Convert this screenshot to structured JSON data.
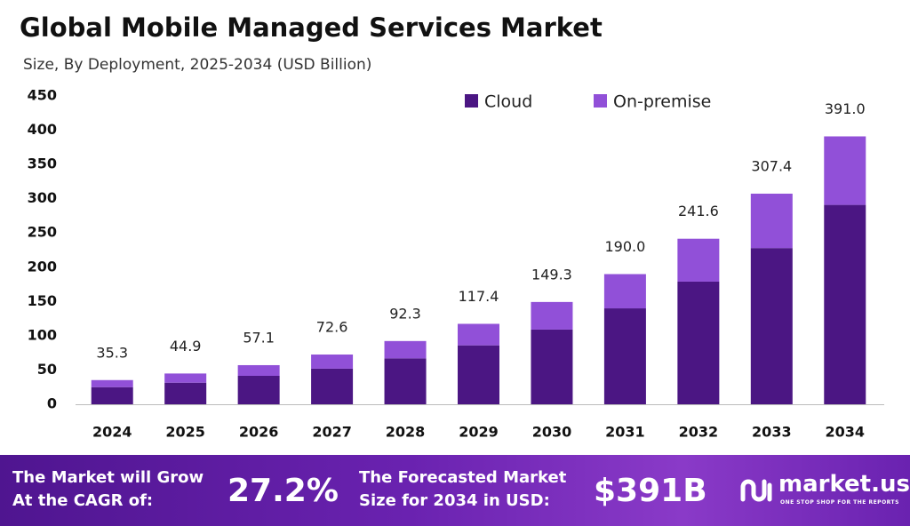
{
  "chart_data": {
    "type": "stacked-bar",
    "title": "Global Mobile Managed Services Market",
    "subtitle": "Size, By Deployment, 2025-2034 (USD Billion)",
    "categories": [
      "2024",
      "2025",
      "2026",
      "2027",
      "2028",
      "2029",
      "2030",
      "2031",
      "2032",
      "2033",
      "2034"
    ],
    "series": [
      {
        "name": "Cloud",
        "color": "#4b1683",
        "values": [
          25.0,
          31.5,
          41.5,
          52.0,
          67.0,
          86.0,
          109.0,
          140.0,
          179.0,
          228.0,
          291.0
        ]
      },
      {
        "name": "On-premise",
        "color": "#9150d8",
        "values": [
          10.3,
          13.4,
          15.6,
          20.6,
          25.3,
          31.4,
          40.3,
          50.0,
          62.6,
          79.4,
          100.0
        ]
      }
    ],
    "totals": {
      "values": [
        35.3,
        44.9,
        57.1,
        72.6,
        92.3,
        117.4,
        149.3,
        190.0,
        241.6,
        307.4,
        391.0
      ],
      "value_labels": [
        "35.3",
        "44.9",
        "57.1",
        "72.6",
        "92.3",
        "117.4",
        "149.3",
        "190.0",
        "241.6",
        "307.4",
        "391.0"
      ]
    },
    "ylim": [
      0,
      450
    ],
    "yticks": [
      0,
      50,
      100,
      150,
      200,
      250,
      300,
      350,
      400,
      450
    ],
    "grid": false
  },
  "footer": {
    "cagr_text": "The Market will Grow At the CAGR of:",
    "cagr": "27.2%",
    "forecast_text": "The Forecasted Market Size for 2034 in USD:",
    "forecast": "$391B",
    "brand": "market.us",
    "tagline": "ONE STOP SHOP FOR THE REPORTS"
  }
}
